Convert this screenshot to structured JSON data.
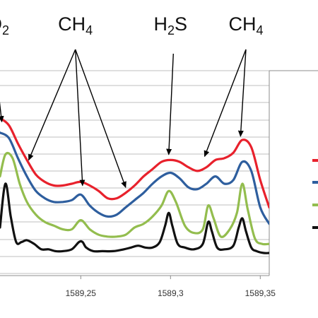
{
  "chart_data": {
    "type": "line",
    "title": "",
    "xlabel": "",
    "ylabel": "",
    "xlim": [
      1589.205,
      1589.355
    ],
    "ylim": [
      0,
      1
    ],
    "grid": true,
    "legend_position": "right",
    "x_ticks": [
      "1589,25",
      "1589,3",
      "1589,35"
    ],
    "x_tick_values": [
      1589.25,
      1589.3,
      1589.35
    ],
    "annotations": [
      {
        "base": "O",
        "sub": "2",
        "x": 1589.204,
        "arrow_to": [
          [
            1589.206,
            0.72
          ]
        ]
      },
      {
        "base": "CH",
        "sub": "4",
        "x": 1589.247,
        "arrow_to": [
          [
            1589.221,
            0.51
          ],
          [
            1589.251,
            0.37
          ],
          [
            1589.275,
            0.36
          ]
        ]
      },
      {
        "base": "H",
        "sub": "2",
        "base2": "S",
        "x": 1589.3,
        "arrow_to": [
          [
            1589.299,
            0.54
          ]
        ]
      },
      {
        "base": "CH",
        "sub": "4",
        "x": 1589.342,
        "arrow_to": [
          [
            1589.319,
            0.53
          ],
          [
            1589.339,
            0.64
          ]
        ]
      }
    ],
    "legend_colors": [
      "#e8212c",
      "#2e5e9e",
      "#93bd4e",
      "#111111"
    ],
    "series": [
      {
        "color": "#e8212c",
        "x": [
          1589.205,
          1589.21,
          1589.215,
          1589.22,
          1589.225,
          1589.23,
          1589.235,
          1589.24,
          1589.245,
          1589.25,
          1589.255,
          1589.26,
          1589.265,
          1589.27,
          1589.275,
          1589.28,
          1589.285,
          1589.29,
          1589.295,
          1589.3,
          1589.305,
          1589.31,
          1589.315,
          1589.32,
          1589.325,
          1589.33,
          1589.335,
          1589.34,
          1589.345,
          1589.35,
          1589.355
        ],
        "y": [
          0.74,
          0.7,
          0.6,
          0.51,
          0.43,
          0.39,
          0.37,
          0.37,
          0.38,
          0.39,
          0.37,
          0.34,
          0.3,
          0.3,
          0.33,
          0.37,
          0.42,
          0.46,
          0.5,
          0.51,
          0.5,
          0.47,
          0.45,
          0.47,
          0.51,
          0.52,
          0.55,
          0.62,
          0.58,
          0.4,
          0.25
        ]
      },
      {
        "color": "#2e5e9e",
        "x": [
          1589.205,
          1589.21,
          1589.215,
          1589.22,
          1589.225,
          1589.23,
          1589.235,
          1589.24,
          1589.245,
          1589.25,
          1589.255,
          1589.26,
          1589.265,
          1589.27,
          1589.275,
          1589.28,
          1589.285,
          1589.29,
          1589.295,
          1589.3,
          1589.305,
          1589.31,
          1589.315,
          1589.32,
          1589.325,
          1589.33,
          1589.335,
          1589.34,
          1589.345,
          1589.35,
          1589.355
        ],
        "y": [
          0.66,
          0.63,
          0.52,
          0.42,
          0.34,
          0.3,
          0.28,
          0.28,
          0.29,
          0.32,
          0.26,
          0.22,
          0.2,
          0.21,
          0.25,
          0.29,
          0.33,
          0.38,
          0.42,
          0.44,
          0.41,
          0.36,
          0.35,
          0.38,
          0.42,
          0.38,
          0.4,
          0.5,
          0.45,
          0.25,
          0.16
        ]
      },
      {
        "color": "#93bd4e",
        "x": [
          1589.205,
          1589.208,
          1589.212,
          1589.216,
          1589.22,
          1589.225,
          1589.23,
          1589.235,
          1589.24,
          1589.245,
          1589.25,
          1589.255,
          1589.26,
          1589.265,
          1589.27,
          1589.275,
          1589.28,
          1589.285,
          1589.29,
          1589.295,
          1589.299,
          1589.303,
          1589.308,
          1589.313,
          1589.318,
          1589.321,
          1589.324,
          1589.328,
          1589.333,
          1589.337,
          1589.34,
          1589.343,
          1589.347,
          1589.351,
          1589.355
        ],
        "y": [
          0.42,
          0.54,
          0.52,
          0.38,
          0.28,
          0.21,
          0.17,
          0.15,
          0.13,
          0.13,
          0.18,
          0.13,
          0.1,
          0.09,
          0.09,
          0.1,
          0.14,
          0.16,
          0.2,
          0.26,
          0.34,
          0.28,
          0.15,
          0.11,
          0.13,
          0.26,
          0.19,
          0.09,
          0.13,
          0.22,
          0.38,
          0.24,
          0.08,
          0.05,
          0.05
        ]
      },
      {
        "color": "#111111",
        "x": [
          1589.205,
          1589.208,
          1589.211,
          1589.214,
          1589.217,
          1589.22,
          1589.224,
          1589.228,
          1589.232,
          1589.236,
          1589.24,
          1589.245,
          1589.249,
          1589.251,
          1589.253,
          1589.257,
          1589.262,
          1589.268,
          1589.274,
          1589.278,
          1589.282,
          1589.286,
          1589.29,
          1589.294,
          1589.297,
          1589.299,
          1589.301,
          1589.304,
          1589.308,
          1589.313,
          1589.318,
          1589.321,
          1589.323,
          1589.326,
          1589.33,
          1589.335,
          1589.338,
          1589.34,
          1589.342,
          1589.345,
          1589.348,
          1589.352,
          1589.355
        ],
        "y": [
          0.14,
          0.38,
          0.2,
          0.06,
          0.06,
          0.07,
          0.05,
          0.02,
          0.02,
          0.01,
          0.01,
          0.02,
          0.06,
          0.06,
          0.03,
          0.01,
          0.01,
          0.01,
          0.02,
          0.03,
          0.04,
          0.03,
          0.03,
          0.06,
          0.15,
          0.22,
          0.15,
          0.05,
          0.03,
          0.02,
          0.05,
          0.17,
          0.12,
          0.03,
          0.02,
          0.04,
          0.14,
          0.19,
          0.12,
          0.03,
          0.01,
          0.0,
          0.0
        ]
      }
    ]
  }
}
